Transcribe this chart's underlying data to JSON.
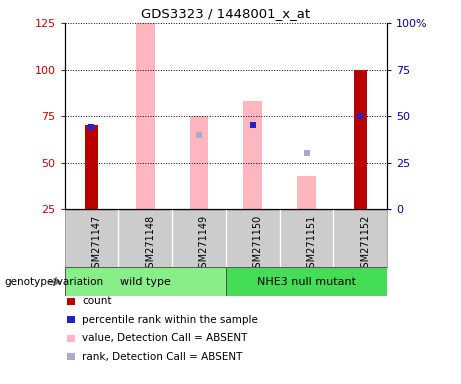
{
  "title": "GDS3323 / 1448001_x_at",
  "samples": [
    "GSM271147",
    "GSM271148",
    "GSM271149",
    "GSM271150",
    "GSM271151",
    "GSM271152"
  ],
  "left_ylim": [
    25,
    125
  ],
  "left_yticks": [
    25,
    50,
    75,
    100,
    125
  ],
  "right_ylim": [
    0,
    100
  ],
  "right_yticks": [
    0,
    25,
    50,
    75,
    100
  ],
  "left_ycolor": "#CC0000",
  "right_ycolor": "#0000BB",
  "bars": {
    "red_bars": [
      70,
      null,
      null,
      null,
      null,
      100
    ],
    "blue_markers": [
      69,
      null,
      null,
      70,
      null,
      75
    ],
    "pink_bars": [
      null,
      125,
      75,
      83,
      43,
      null
    ],
    "lightblue_markers": [
      null,
      null,
      65,
      null,
      55,
      null
    ]
  },
  "red_bar_width": 0.25,
  "pink_bar_width": 0.35,
  "red_color": "#BB0000",
  "blue_color": "#2222CC",
  "pink_color": "#FFB6BE",
  "lightblue_color": "#AAAACC",
  "legend_items": [
    {
      "color": "#BB0000",
      "label": "count"
    },
    {
      "color": "#2222CC",
      "label": "percentile rank within the sample"
    },
    {
      "color": "#FFB6BE",
      "label": "value, Detection Call = ABSENT"
    },
    {
      "color": "#AAAACC",
      "label": "rank, Detection Call = ABSENT"
    }
  ],
  "group_ranges": [
    {
      "start": 0,
      "end": 2,
      "label": "wild type",
      "color": "#88EE88"
    },
    {
      "start": 3,
      "end": 5,
      "label": "NHE3 null mutant",
      "color": "#44DD55"
    }
  ],
  "genotype_label": "genotype/variation",
  "grid_style": "dotted"
}
